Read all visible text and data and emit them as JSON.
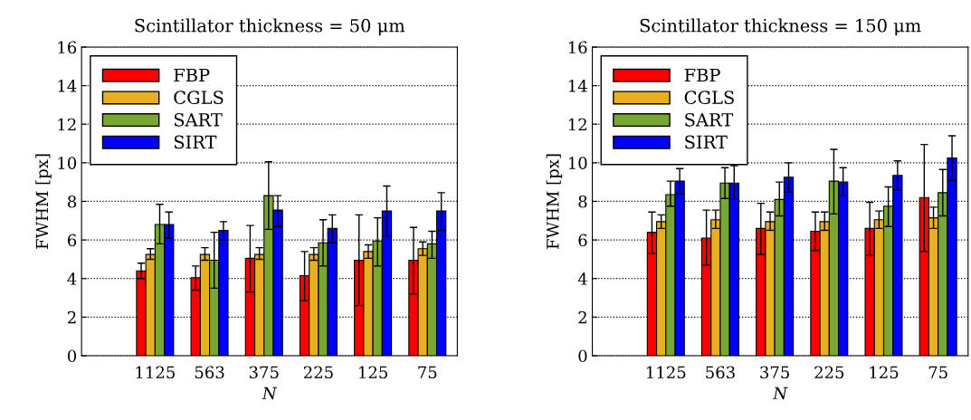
{
  "chart_data": [
    {
      "type": "bar",
      "title": "Scintillator thickness = 50 μm",
      "xlabel": "N",
      "ylabel": "FWHM [px]",
      "categories": [
        "1125",
        "563",
        "375",
        "225",
        "125",
        "75"
      ],
      "ylim": [
        0,
        16
      ],
      "yticks": [
        0,
        2,
        4,
        6,
        8,
        10,
        12,
        14,
        16
      ],
      "grid": "y",
      "legend": "top left",
      "series": [
        {
          "name": "FBP",
          "color": "#ff0000",
          "values": [
            4.4,
            4.05,
            5.05,
            4.15,
            4.95,
            4.95
          ],
          "errors": [
            [
              4.0,
              4.8
            ],
            [
              3.4,
              4.65
            ],
            [
              3.3,
              6.75
            ],
            [
              2.85,
              5.4
            ],
            [
              2.6,
              7.3
            ],
            [
              3.2,
              6.65
            ]
          ]
        },
        {
          "name": "CGLS",
          "color": "#e8b020",
          "values": [
            5.25,
            5.25,
            5.25,
            5.25,
            5.4,
            5.55
          ],
          "errors": [
            [
              5.0,
              5.55
            ],
            [
              4.95,
              5.6
            ],
            [
              5.0,
              5.6
            ],
            [
              4.95,
              5.6
            ],
            [
              5.05,
              5.75
            ],
            [
              5.2,
              5.9
            ]
          ]
        },
        {
          "name": "SART",
          "color": "#78a832",
          "values": [
            6.8,
            4.95,
            8.3,
            5.85,
            5.95,
            5.8
          ],
          "errors": [
            [
              5.8,
              7.85
            ],
            [
              3.5,
              6.4
            ],
            [
              6.55,
              10.05
            ],
            [
              4.65,
              7.05
            ],
            [
              4.65,
              7.15
            ],
            [
              5.05,
              6.45
            ]
          ]
        },
        {
          "name": "SIRT",
          "color": "#0000ff",
          "values": [
            6.8,
            6.5,
            7.55,
            6.6,
            7.5,
            7.5
          ],
          "errors": [
            [
              6.1,
              7.45
            ],
            [
              6.0,
              6.95
            ],
            [
              6.7,
              8.3
            ],
            [
              5.85,
              7.3
            ],
            [
              6.2,
              8.8
            ],
            [
              6.5,
              8.45
            ]
          ]
        }
      ]
    },
    {
      "type": "bar",
      "title": "Scintillator thickness = 150 μm",
      "xlabel": "N",
      "ylabel": "FWHM [px]",
      "categories": [
        "1125",
        "563",
        "375",
        "225",
        "125",
        "75"
      ],
      "ylim": [
        0,
        16
      ],
      "yticks": [
        0,
        2,
        4,
        6,
        8,
        10,
        12,
        14,
        16
      ],
      "grid": "y",
      "legend": "top left",
      "series": [
        {
          "name": "FBP",
          "color": "#ff0000",
          "values": [
            6.4,
            6.1,
            6.6,
            6.45,
            6.6,
            8.2
          ],
          "errors": [
            [
              5.3,
              7.45
            ],
            [
              4.7,
              7.55
            ],
            [
              5.25,
              7.9
            ],
            [
              5.45,
              7.45
            ],
            [
              5.2,
              7.95
            ],
            [
              5.4,
              10.95
            ]
          ]
        },
        {
          "name": "CGLS",
          "color": "#e8b020",
          "values": [
            6.95,
            7.05,
            6.95,
            6.95,
            7.05,
            7.15
          ],
          "errors": [
            [
              6.6,
              7.3
            ],
            [
              6.6,
              7.55
            ],
            [
              6.5,
              7.45
            ],
            [
              6.5,
              7.45
            ],
            [
              6.6,
              7.5
            ],
            [
              6.6,
              7.7
            ]
          ]
        },
        {
          "name": "SART",
          "color": "#78a832",
          "values": [
            8.35,
            8.95,
            8.1,
            9.05,
            7.75,
            8.45
          ],
          "errors": [
            [
              7.75,
              9.05
            ],
            [
              8.15,
              9.75
            ],
            [
              7.25,
              9.0
            ],
            [
              7.35,
              10.7
            ],
            [
              6.7,
              8.75
            ],
            [
              7.25,
              9.65
            ]
          ]
        },
        {
          "name": "SIRT",
          "color": "#0000ff",
          "values": [
            9.05,
            8.95,
            9.25,
            9.0,
            9.35,
            10.25
          ],
          "errors": [
            [
              8.4,
              9.7
            ],
            [
              8.1,
              9.85
            ],
            [
              8.5,
              10.0
            ],
            [
              8.3,
              9.75
            ],
            [
              8.6,
              10.1
            ],
            [
              9.1,
              11.4
            ]
          ]
        }
      ]
    }
  ]
}
